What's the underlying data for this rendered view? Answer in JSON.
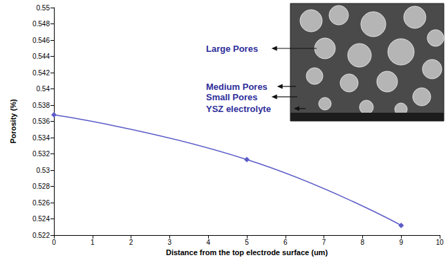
{
  "chart_data": {
    "type": "line",
    "xlabel": "Distance from the top electrode surface (um)",
    "ylabel": "Porosity (%)",
    "x": [
      0,
      5,
      9
    ],
    "values": [
      0.5368,
      0.5313,
      0.5232
    ],
    "color": "#5b5bc8",
    "marker": "diamond",
    "line_style": "smooth",
    "xlim": [
      0,
      10
    ],
    "xticks": [
      0,
      1,
      2,
      3,
      4,
      5,
      6,
      7,
      8,
      9,
      10
    ],
    "ylim": [
      0.522,
      0.55
    ],
    "yticks": [
      0.522,
      0.524,
      0.526,
      0.528,
      0.53,
      0.532,
      0.534,
      0.536,
      0.538,
      0.54,
      0.542,
      0.544,
      0.546,
      0.548,
      0.55
    ],
    "grid": false,
    "annotations": [
      "Large Pores",
      "Medium Pores",
      "Small Pores",
      "YSZ electrolyte"
    ]
  }
}
